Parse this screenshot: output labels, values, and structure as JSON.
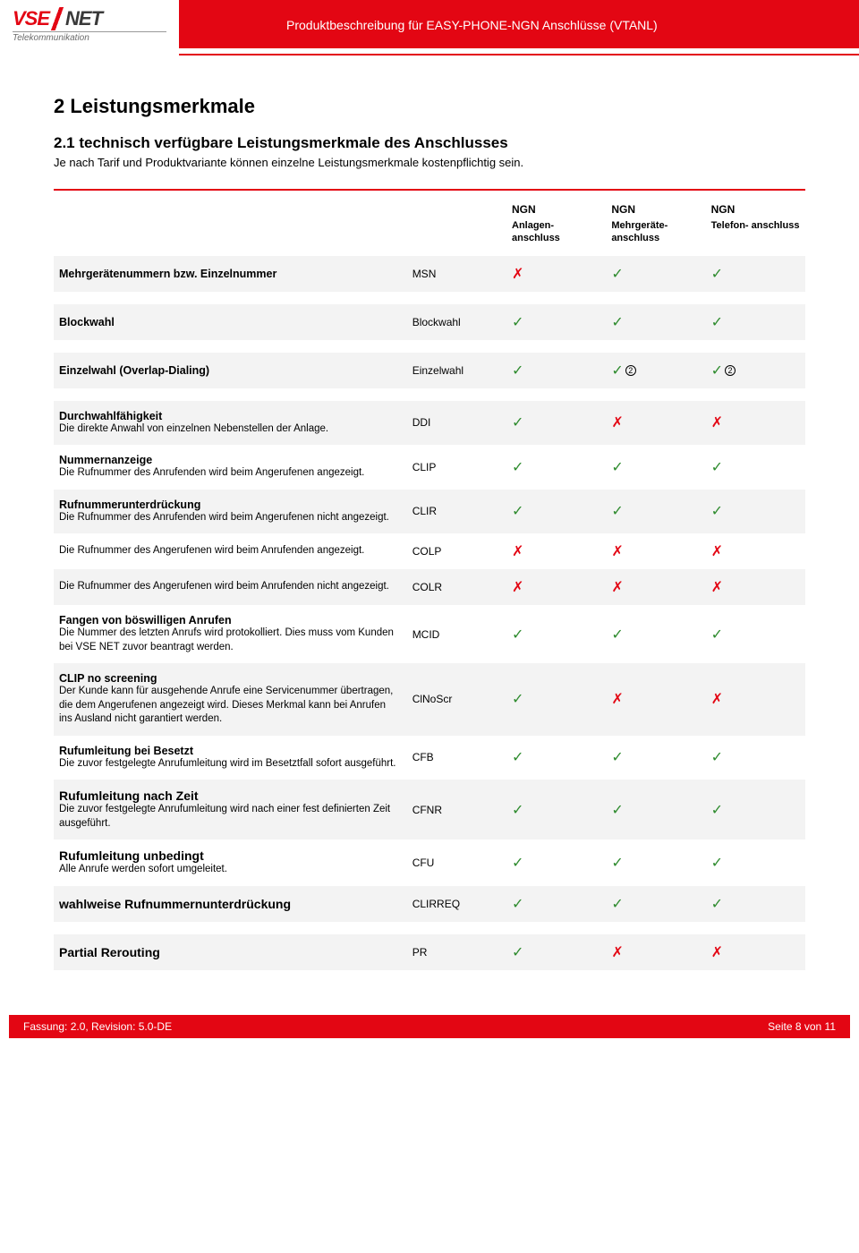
{
  "header": {
    "logo_vse": "VSE",
    "logo_net": "NET",
    "logo_sub": "Telekommunikation",
    "title": "Produktbeschreibung für EASY-PHONE-NGN Anschlüsse (VTANL)"
  },
  "section": {
    "h1": "2  Leistungsmerkmale",
    "h2": "2.1   technisch verfügbare Leistungsmerkmale des Anschlusses",
    "intro": "Je nach Tarif und Produktvariante können einzelne Leistungsmerkmale kostenpflichtig sein."
  },
  "table": {
    "columns": [
      {
        "top": "NGN",
        "sub": "Anlagen-\nanschluss"
      },
      {
        "top": "NGN",
        "sub": "Mehrgeräte-\nanschluss"
      },
      {
        "top": "NGN",
        "sub": "Telefon-\nanschluss"
      }
    ],
    "rows": [
      {
        "title": "Mehrgerätenummern bzw. Einzelnummer",
        "desc": "",
        "code": "MSN",
        "marks": [
          "no",
          "yes",
          "yes"
        ],
        "sep": true
      },
      {
        "title": "Blockwahl",
        "desc": "",
        "code": "Blockwahl",
        "marks": [
          "yes",
          "yes",
          "yes"
        ],
        "sep": true
      },
      {
        "title": "Einzelwahl (Overlap-Dialing)",
        "desc": "",
        "code": "Einzelwahl",
        "marks": [
          "yes",
          "yes2",
          "yes2"
        ],
        "sep": true
      },
      {
        "title": "Durchwahlfähigkeit",
        "desc": "Die direkte Anwahl von einzelnen Nebenstellen der Anlage.",
        "code": "DDI",
        "marks": [
          "yes",
          "no",
          "no"
        ]
      },
      {
        "title": "Nummernanzeige",
        "desc": "Die Rufnummer des Anrufenden wird beim Angerufenen angezeigt.",
        "code": "CLIP",
        "marks": [
          "yes",
          "yes",
          "yes"
        ]
      },
      {
        "title": "Rufnummerunterdrückung",
        "desc": "Die Rufnummer des Anrufenden wird beim Angerufenen nicht angezeigt.",
        "code": "CLIR",
        "marks": [
          "yes",
          "yes",
          "yes"
        ]
      },
      {
        "title": "",
        "desc": "Die Rufnummer des Angerufenen wird beim Anrufenden angezeigt.",
        "code": "COLP",
        "marks": [
          "no",
          "no",
          "no"
        ]
      },
      {
        "title": "",
        "desc": "Die Rufnummer des Angerufenen wird beim Anrufenden  nicht angezeigt.",
        "code": "COLR",
        "marks": [
          "no",
          "no",
          "no"
        ]
      },
      {
        "title": "Fangen von böswilligen Anrufen",
        "desc": "Die Nummer des letzten Anrufs wird protokolliert. Dies muss vom Kunden bei VSE NET zuvor beantragt werden.",
        "code": "MCID",
        "marks": [
          "yes",
          "yes",
          "yes"
        ]
      },
      {
        "title": "CLIP no screening",
        "desc": "Der Kunde kann für ausgehende Anrufe eine Servicenummer übertragen, die dem Angerufenen angezeigt wird. Dieses Merkmal kann bei Anrufen ins Ausland nicht garantiert werden.",
        "code": "ClNoScr",
        "marks": [
          "yes",
          "no",
          "no"
        ]
      },
      {
        "title": "Rufumleitung bei Besetzt",
        "desc": "Die zuvor festgelegte Anrufumleitung wird im Besetztfall sofort ausgeführt.",
        "code": "CFB",
        "marks": [
          "yes",
          "yes",
          "yes"
        ]
      },
      {
        "title": "Rufumleitung nach Zeit",
        "big": true,
        "desc": "Die zuvor festgelegte Anrufumleitung wird nach einer fest definierten Zeit ausgeführt.",
        "code": "CFNR",
        "marks": [
          "yes",
          "yes",
          "yes"
        ]
      },
      {
        "title": "Rufumleitung unbedingt",
        "big": true,
        "desc": "Alle Anrufe werden sofort umgeleitet.",
        "code": "CFU",
        "marks": [
          "yes",
          "yes",
          "yes"
        ]
      },
      {
        "title": "wahlweise Rufnummernunterdrückung",
        "big": true,
        "desc": "",
        "code": "CLIRREQ",
        "marks": [
          "yes",
          "yes",
          "yes"
        ],
        "sep": true
      },
      {
        "title": "Partial Rerouting",
        "big": true,
        "desc": "",
        "code": "PR",
        "marks": [
          "yes",
          "no",
          "no"
        ]
      }
    ]
  },
  "footer": {
    "left": "Fassung: 2.0, Revision: 5.0-DE",
    "right": "Seite 8 von 11"
  },
  "glyph": {
    "yes": "✓",
    "no": "✗",
    "note2": "2"
  }
}
